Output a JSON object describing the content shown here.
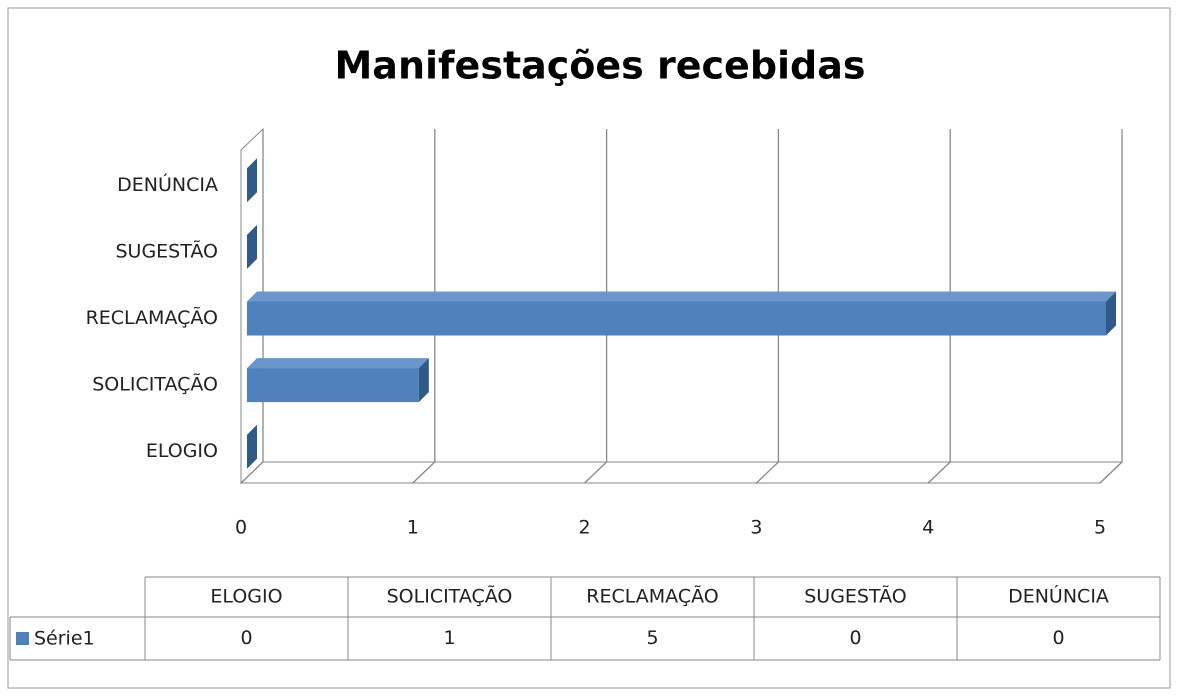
{
  "chart_data": {
    "type": "bar",
    "orientation": "horizontal",
    "title": "Manifestações recebidas",
    "categories": [
      "ELOGIO",
      "SOLICITAÇÃO",
      "RECLAMAÇÃO",
      "SUGESTÃO",
      "DENÚNCIA"
    ],
    "series": [
      {
        "name": "Série1",
        "color": "#4f81bd",
        "values": [
          0,
          1,
          5,
          0,
          0
        ]
      }
    ],
    "xlim": [
      0,
      5
    ],
    "xticks": [
      0,
      1,
      2,
      3,
      4,
      5
    ],
    "grid": true,
    "data_table": true
  }
}
